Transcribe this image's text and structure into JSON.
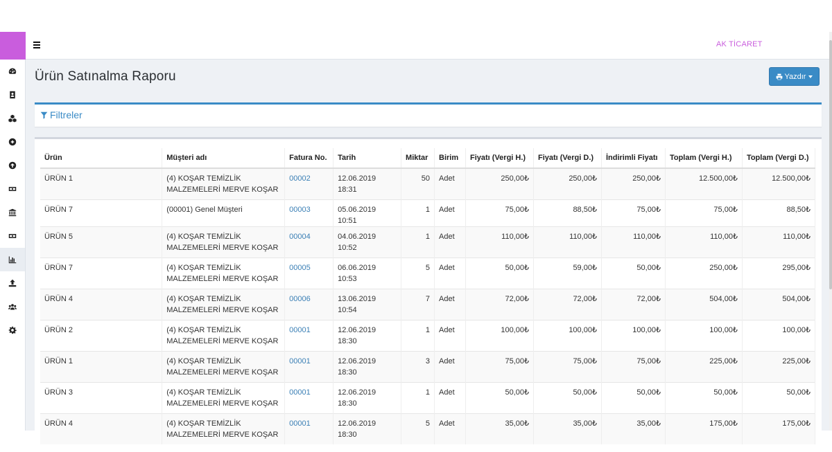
{
  "navbar": {
    "company": "AK TİCARET"
  },
  "sidebar": {
    "items": [
      {
        "icon": "dashboard-icon"
      },
      {
        "icon": "contacts-book-icon"
      },
      {
        "icon": "cubes-icon"
      },
      {
        "icon": "plus-circle-icon"
      },
      {
        "icon": "arrow-up-circle-icon"
      },
      {
        "icon": "money-bill-icon"
      },
      {
        "icon": "bank-icon"
      },
      {
        "icon": "money-bill-icon"
      },
      {
        "icon": "bar-chart-icon"
      },
      {
        "icon": "upload-icon"
      },
      {
        "icon": "users-icon"
      },
      {
        "icon": "gear-icon"
      }
    ]
  },
  "page": {
    "title": "Ürün Satınalma Raporu",
    "print_label": "Yazdır"
  },
  "filter": {
    "title": "Filtreler"
  },
  "table": {
    "headers": [
      "Ürün",
      "Müşteri adı",
      "Fatura No.",
      "Tarih",
      "Miktar",
      "Birim",
      "Fiyatı (Vergi H.)",
      "Fiyatı (Vergi D.)",
      "İndirimli Fiyatı",
      "Toplam (Vergi H.)",
      "Toplam (Vergi D.)"
    ],
    "rows": [
      {
        "urun": "ÜRÜN 1",
        "musteri": "(4) KOŞAR TEMİZLİK MALZEMELERİ MERVE KOŞAR",
        "fatura": "00002",
        "tarih": "12.06.2019 18:31",
        "miktar": "50",
        "birim": "Adet",
        "fiyat_h": "250,00₺",
        "fiyat_d": "250,00₺",
        "indirimli": "250,00₺",
        "toplam_h": "12.500,00₺",
        "toplam_d": "12.500,00₺"
      },
      {
        "urun": "ÜRÜN 7",
        "musteri": "(00001) Genel Müşteri",
        "fatura": "00003",
        "tarih": "05.06.2019 10:51",
        "miktar": "1",
        "birim": "Adet",
        "fiyat_h": "75,00₺",
        "fiyat_d": "88,50₺",
        "indirimli": "75,00₺",
        "toplam_h": "75,00₺",
        "toplam_d": "88,50₺"
      },
      {
        "urun": "ÜRÜN 5",
        "musteri": "(4) KOŞAR TEMİZLİK MALZEMELERİ MERVE KOŞAR",
        "fatura": "00004",
        "tarih": "04.06.2019 10:52",
        "miktar": "1",
        "birim": "Adet",
        "fiyat_h": "110,00₺",
        "fiyat_d": "110,00₺",
        "indirimli": "110,00₺",
        "toplam_h": "110,00₺",
        "toplam_d": "110,00₺"
      },
      {
        "urun": "ÜRÜN 7",
        "musteri": "(4) KOŞAR TEMİZLİK MALZEMELERİ MERVE KOŞAR",
        "fatura": "00005",
        "tarih": "06.06.2019 10:53",
        "miktar": "5",
        "birim": "Adet",
        "fiyat_h": "50,00₺",
        "fiyat_d": "59,00₺",
        "indirimli": "50,00₺",
        "toplam_h": "250,00₺",
        "toplam_d": "295,00₺"
      },
      {
        "urun": "ÜRÜN 4",
        "musteri": "(4) KOŞAR TEMİZLİK MALZEMELERİ MERVE KOŞAR",
        "fatura": "00006",
        "tarih": "13.06.2019 10:54",
        "miktar": "7",
        "birim": "Adet",
        "fiyat_h": "72,00₺",
        "fiyat_d": "72,00₺",
        "indirimli": "72,00₺",
        "toplam_h": "504,00₺",
        "toplam_d": "504,00₺"
      },
      {
        "urun": "ÜRÜN 2",
        "musteri": "(4) KOŞAR TEMİZLİK MALZEMELERİ MERVE KOŞAR",
        "fatura": "00001",
        "tarih": "12.06.2019 18:30",
        "miktar": "1",
        "birim": "Adet",
        "fiyat_h": "100,00₺",
        "fiyat_d": "100,00₺",
        "indirimli": "100,00₺",
        "toplam_h": "100,00₺",
        "toplam_d": "100,00₺"
      },
      {
        "urun": "ÜRÜN 1",
        "musteri": "(4) KOŞAR TEMİZLİK MALZEMELERİ MERVE KOŞAR",
        "fatura": "00001",
        "tarih": "12.06.2019 18:30",
        "miktar": "3",
        "birim": "Adet",
        "fiyat_h": "75,00₺",
        "fiyat_d": "75,00₺",
        "indirimli": "75,00₺",
        "toplam_h": "225,00₺",
        "toplam_d": "225,00₺"
      },
      {
        "urun": "ÜRÜN 3",
        "musteri": "(4) KOŞAR TEMİZLİK MALZEMELERİ MERVE KOŞAR",
        "fatura": "00001",
        "tarih": "12.06.2019 18:30",
        "miktar": "1",
        "birim": "Adet",
        "fiyat_h": "50,00₺",
        "fiyat_d": "50,00₺",
        "indirimli": "50,00₺",
        "toplam_h": "50,00₺",
        "toplam_d": "50,00₺"
      },
      {
        "urun": "ÜRÜN 4",
        "musteri": "(4) KOŞAR TEMİZLİK MALZEMELERİ MERVE KOŞAR",
        "fatura": "00001",
        "tarih": "12.06.2019 18:30",
        "miktar": "5",
        "birim": "Adet",
        "fiyat_h": "35,00₺",
        "fiyat_d": "35,00₺",
        "indirimli": "35,00₺",
        "toplam_h": "175,00₺",
        "toplam_d": "175,00₺"
      }
    ]
  }
}
